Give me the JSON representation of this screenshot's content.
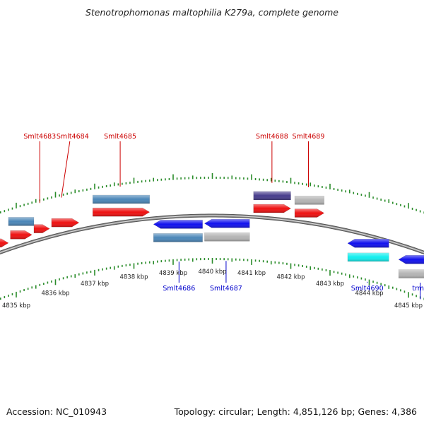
{
  "title": "Stenotrophomonas maltophilia K279a, complete genome",
  "footer": {
    "accession": "Accession: NC_010943",
    "topology": "Topology: circular; Length: 4,851,126 bp; Genes: 4,386"
  },
  "scale": {
    "unit": "kbp",
    "ticks": [
      {
        "label": "4835 kbp",
        "kbp": 4835
      },
      {
        "label": "4836 kbp",
        "kbp": 4836
      },
      {
        "label": "4837 kbp",
        "kbp": 4837
      },
      {
        "label": "4838 kbp",
        "kbp": 4838
      },
      {
        "label": "4839 kbp",
        "kbp": 4839
      },
      {
        "label": "4840 kbp",
        "kbp": 4840
      },
      {
        "label": "4841 kbp",
        "kbp": 4841
      },
      {
        "label": "4842 kbp",
        "kbp": 4842
      },
      {
        "label": "4843 kbp",
        "kbp": 4843
      },
      {
        "label": "4844 kbp",
        "kbp": 4844
      },
      {
        "label": "4845 kbp",
        "kbp": 4845
      }
    ]
  },
  "colors": {
    "forward_cds": "#ee1111",
    "reverse_cds": "#1111ee",
    "gene_steelblue": "#4a86b8",
    "gene_slate": "#463c8c",
    "gene_gray": "#b4b4b4",
    "gene_cyan": "#11eeee",
    "tick_green": "#2a8c2a",
    "backbone": "#8a8a8a",
    "label_forward": "#cc0000",
    "label_reverse": "#0000cc"
  },
  "forward_features": [
    {
      "track": "cds",
      "start": 4834.2,
      "end": 4834.8,
      "color": "#ee1111"
    },
    {
      "track": "cds",
      "start": 4834.85,
      "end": 4835.4,
      "color": "#ee1111"
    },
    {
      "track": "cds",
      "start": 4835.45,
      "end": 4835.85,
      "color": "#ee1111"
    },
    {
      "track": "cds",
      "start": 4835.9,
      "end": 4836.6,
      "color": "#ee1111"
    },
    {
      "track": "cds",
      "start": 4836.95,
      "end": 4838.4,
      "color": "#ee1111"
    },
    {
      "track": "cds",
      "start": 4841.05,
      "end": 4842.0,
      "color": "#ee1111"
    },
    {
      "track": "cds",
      "start": 4842.1,
      "end": 4842.85,
      "color": "#ee1111"
    },
    {
      "track": "gene",
      "start": 4834.8,
      "end": 4835.45,
      "color": "#4a86b8"
    },
    {
      "track": "gene",
      "start": 4836.95,
      "end": 4838.4,
      "color": "#4a86b8"
    },
    {
      "track": "gene",
      "start": 4841.05,
      "end": 4842.0,
      "color": "#463c8c"
    },
    {
      "track": "gene",
      "start": 4842.1,
      "end": 4842.85,
      "color": "#b4b4b4"
    }
  ],
  "reverse_features": [
    {
      "track": "cds",
      "start": 4838.5,
      "end": 4839.75,
      "color": "#1111ee"
    },
    {
      "track": "cds",
      "start": 4839.8,
      "end": 4840.95,
      "color": "#1111ee"
    },
    {
      "track": "cds",
      "start": 4843.45,
      "end": 4844.5,
      "color": "#1111ee"
    },
    {
      "track": "cds",
      "start": 4844.75,
      "end": 4845.9,
      "color": "#1111ee"
    },
    {
      "track": "gene",
      "start": 4838.5,
      "end": 4839.75,
      "color": "#4a86b8"
    },
    {
      "track": "gene",
      "start": 4839.8,
      "end": 4840.95,
      "color": "#b4b4b4"
    },
    {
      "track": "gene",
      "start": 4843.45,
      "end": 4844.5,
      "color": "#11eeee"
    },
    {
      "track": "gene",
      "start": 4844.75,
      "end": 4845.9,
      "color": "#b4b4b4"
    }
  ],
  "labels": [
    {
      "text": "Smlt4683",
      "strand": "forward",
      "at": 4835.6
    },
    {
      "text": "Smlt4684",
      "strand": "forward",
      "at": 4836.15
    },
    {
      "text": "Smlt4685",
      "strand": "forward",
      "at": 4837.65
    },
    {
      "text": "Smlt4688",
      "strand": "forward",
      "at": 4841.52
    },
    {
      "text": "Smlt4689",
      "strand": "forward",
      "at": 4842.45
    },
    {
      "text": "Smlt4686",
      "strand": "reverse",
      "at": 4839.15
    },
    {
      "text": "Smlt4687",
      "strand": "reverse",
      "at": 4840.35
    },
    {
      "text": "Smlt4690",
      "strand": "reverse",
      "at": 4843.95
    },
    {
      "text": "trmE",
      "strand": "reverse",
      "at": 4845.3
    }
  ]
}
